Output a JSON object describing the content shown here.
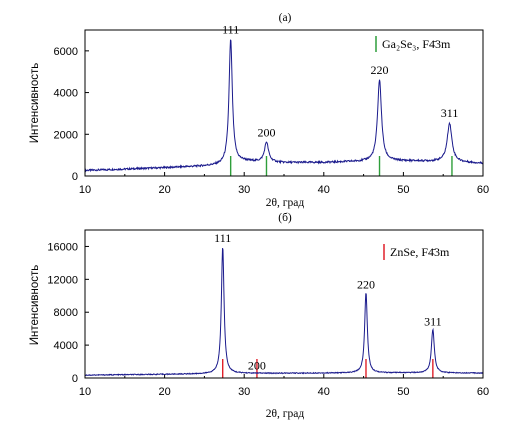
{
  "chart_data": [
    {
      "type": "line",
      "title": "(а)",
      "xlabel": "2θ, град",
      "ylabel": "Интенсивность",
      "xlim": [
        10,
        60
      ],
      "ylim": [
        0,
        7000
      ],
      "x_ticks": [
        10,
        20,
        30,
        40,
        50,
        60
      ],
      "y_ticks": [
        0,
        2000,
        4000,
        6000
      ],
      "x_tick_labels": [
        "10",
        "20",
        "30",
        "40",
        "50",
        "60"
      ],
      "y_tick_labels": [
        "0",
        "2000",
        "4000",
        "6000"
      ],
      "line_color": "#1a1a8c",
      "ref_color": "#2e9e3a",
      "baseline": [
        {
          "x": 10,
          "y": 270
        },
        {
          "x": 15,
          "y": 330
        },
        {
          "x": 20,
          "y": 400
        },
        {
          "x": 25,
          "y": 480
        },
        {
          "x": 27,
          "y": 520
        },
        {
          "x": 30,
          "y": 700
        },
        {
          "x": 35,
          "y": 640
        },
        {
          "x": 40,
          "y": 650
        },
        {
          "x": 45,
          "y": 700
        },
        {
          "x": 50,
          "y": 720
        },
        {
          "x": 55,
          "y": 700
        },
        {
          "x": 60,
          "y": 610
        }
      ],
      "peaks": [
        {
          "label": "111",
          "x": 28.3,
          "height": 5950,
          "width": 0.25
        },
        {
          "label": "200",
          "x": 32.8,
          "height": 950,
          "width": 0.3
        },
        {
          "label": "220",
          "x": 47.0,
          "height": 3900,
          "width": 0.3
        },
        {
          "label": "311",
          "x": 55.8,
          "height": 1850,
          "width": 0.35
        }
      ],
      "reference_lines": [
        28.3,
        32.8,
        47.0,
        56.1
      ],
      "legend": {
        "text": "Ga₂Se₃, F4̄3m"
      }
    },
    {
      "type": "line",
      "title": "(б)",
      "xlabel": "2θ, град",
      "ylabel": "Интенсивность",
      "xlim": [
        10,
        60
      ],
      "ylim": [
        0,
        18000
      ],
      "x_ticks": [
        10,
        20,
        30,
        40,
        50,
        60
      ],
      "y_ticks": [
        0,
        4000,
        8000,
        12000,
        16000
      ],
      "x_tick_labels": [
        "10",
        "20",
        "30",
        "40",
        "50",
        "60"
      ],
      "y_tick_labels": [
        "0",
        "4000",
        "8000",
        "12000",
        "16000"
      ],
      "line_color": "#1a1a8c",
      "ref_color": "#e0202a",
      "baseline": [
        {
          "x": 10,
          "y": 350
        },
        {
          "x": 20,
          "y": 450
        },
        {
          "x": 25,
          "y": 500
        },
        {
          "x": 30,
          "y": 560
        },
        {
          "x": 40,
          "y": 600
        },
        {
          "x": 50,
          "y": 630
        },
        {
          "x": 60,
          "y": 600
        }
      ],
      "peaks": [
        {
          "label": "111",
          "x": 27.3,
          "height": 15500,
          "width": 0.2
        },
        {
          "label": "200",
          "x": 31.6,
          "height": 0,
          "width": 0.2
        },
        {
          "label": "220",
          "x": 45.3,
          "height": 9800,
          "width": 0.2
        },
        {
          "label": "311",
          "x": 53.7,
          "height": 5300,
          "width": 0.22
        }
      ],
      "reference_lines": [
        27.3,
        31.6,
        45.3,
        53.7
      ],
      "legend": {
        "text": "ZnSe, F4̄3m"
      }
    }
  ]
}
